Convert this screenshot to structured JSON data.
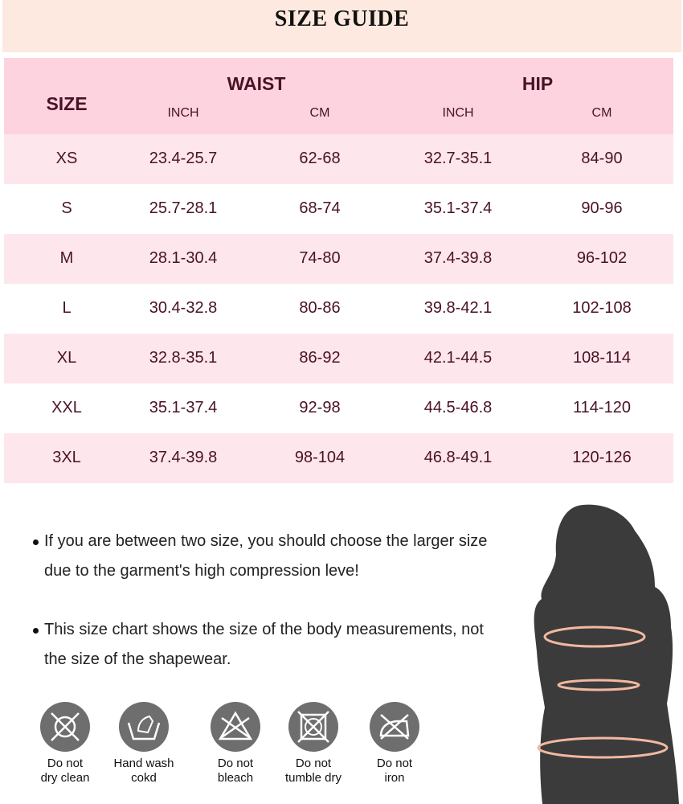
{
  "title": "SIZE GUIDE",
  "table": {
    "size_header": "SIZE",
    "groups": [
      "WAIST",
      "HIP"
    ],
    "units": [
      "INCH",
      "CM",
      "INCH",
      "CM"
    ],
    "rows": [
      [
        "XS",
        "23.4-25.7",
        "62-68",
        "32.7-35.1",
        "84-90"
      ],
      [
        "S",
        "25.7-28.1",
        "68-74",
        "35.1-37.4",
        "90-96"
      ],
      [
        "M",
        "28.1-30.4",
        "74-80",
        "37.4-39.8",
        "96-102"
      ],
      [
        "L",
        "30.4-32.8",
        "80-86",
        "39.8-42.1",
        "102-108"
      ],
      [
        "XL",
        "32.8-35.1",
        "86-92",
        "42.1-44.5",
        "108-114"
      ],
      [
        "XXL",
        "35.1-37.4",
        "92-98",
        "44.5-46.8",
        "114-120"
      ],
      [
        "3XL",
        "37.4-39.8",
        "98-104",
        "46.8-49.1",
        "120-126"
      ]
    ]
  },
  "notes": [
    " If you are between two size, you should choose the larger size due to the garment's high compression leve!",
    "This size chart shows the size of the body measurements, not the size of the shapewear."
  ],
  "care": [
    {
      "icon": "no-dry-clean-icon",
      "line1": "Do not",
      "line2": "dry clean"
    },
    {
      "icon": "hand-wash-icon",
      "line1": "Hand wash",
      "line2": "cokd"
    },
    {
      "icon": "no-bleach-icon",
      "line1": "Do not",
      "line2": "bleach"
    },
    {
      "icon": "no-tumble-dry-icon",
      "line1": "Do not",
      "line2": "tumble dry"
    },
    {
      "icon": "no-iron-icon",
      "line1": "Do not",
      "line2": "iron"
    }
  ],
  "colors": {
    "title_bg": "#fde9df",
    "header_bg": "#fdd3df",
    "row_alt": "#fde6ec",
    "text": "#4a1226",
    "icon": "#6e6e6e",
    "measure_line": "#f2b9a0"
  }
}
